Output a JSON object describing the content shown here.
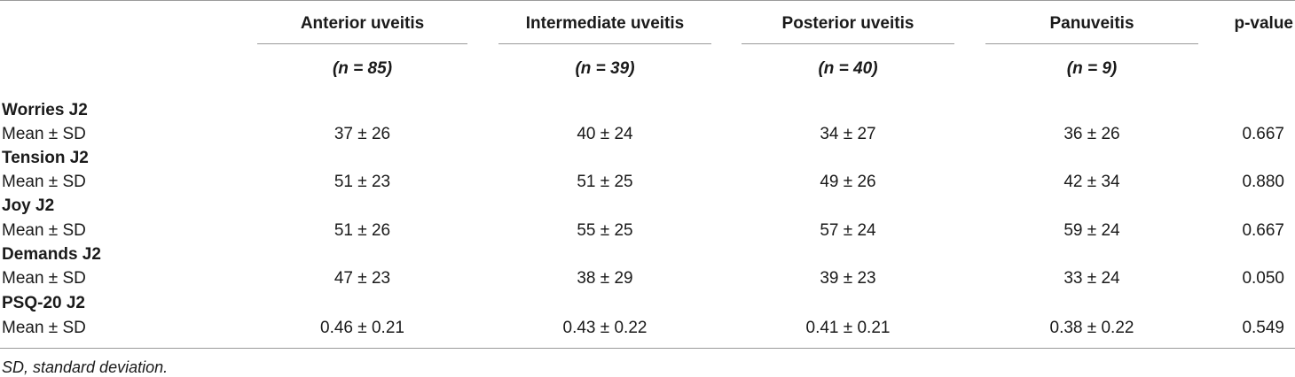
{
  "table": {
    "columns": [
      {
        "label": "Anterior uveitis",
        "n": "(n = 85)"
      },
      {
        "label": "Intermediate uveitis",
        "n": "(n = 39)"
      },
      {
        "label": "Posterior uveitis",
        "n": "(n = 40)"
      },
      {
        "label": "Panuveitis",
        "n": "(n = 9)"
      }
    ],
    "pvalue_header": "p-value",
    "groups": [
      {
        "label": "Worries J2",
        "stat": "Mean ± SD",
        "values": [
          "37 ± 26",
          "40 ± 24",
          "34 ± 27",
          "36 ± 26"
        ],
        "p": "0.667"
      },
      {
        "label": "Tension J2",
        "stat": "Mean ± SD",
        "values": [
          "51 ± 23",
          "51 ± 25",
          "49 ± 26",
          "42 ± 34"
        ],
        "p": "0.880"
      },
      {
        "label": "Joy J2",
        "stat": "Mean ± SD",
        "values": [
          "51 ± 26",
          "55 ± 25",
          "57 ± 24",
          "59 ± 24"
        ],
        "p": "0.667"
      },
      {
        "label": "Demands J2",
        "stat": "Mean ± SD",
        "values": [
          "47 ± 23",
          "38 ± 29",
          "39 ± 23",
          "33 ± 24"
        ],
        "p": "0.050"
      },
      {
        "label": "PSQ-20 J2",
        "stat": "Mean ± SD",
        "values": [
          "0.46 ± 0.21",
          "0.43 ± 0.22",
          "0.41 ± 0.21",
          "0.38 ± 0.22"
        ],
        "p": "0.549"
      }
    ],
    "footnote": "SD, standard deviation."
  }
}
